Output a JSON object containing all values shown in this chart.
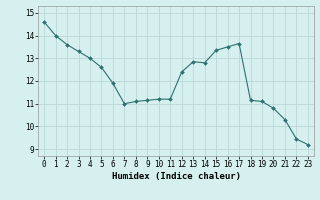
{
  "x": [
    0,
    1,
    2,
    3,
    4,
    5,
    6,
    7,
    8,
    9,
    10,
    11,
    12,
    13,
    14,
    15,
    16,
    17,
    18,
    19,
    20,
    21,
    22,
    23
  ],
  "y": [
    14.6,
    14.0,
    13.6,
    13.3,
    13.0,
    12.6,
    11.9,
    11.0,
    11.1,
    11.15,
    11.2,
    11.2,
    12.4,
    12.85,
    12.8,
    13.35,
    13.5,
    13.65,
    11.15,
    11.1,
    10.8,
    10.3,
    9.45,
    9.2
  ],
  "line_color": "#2e7070",
  "marker_color": "#2e7070",
  "bg_color": "#d5f0ee",
  "grid_major_color": "#b8d8d5",
  "grid_minor_color": "#ccebe8",
  "xlabel": "Humidex (Indice chaleur)",
  "xlim": [
    -0.5,
    23.5
  ],
  "ylim": [
    8.7,
    15.3
  ],
  "yticks": [
    9,
    10,
    11,
    12,
    13,
    14,
    15
  ],
  "xticks": [
    0,
    1,
    2,
    3,
    4,
    5,
    6,
    7,
    8,
    9,
    10,
    11,
    12,
    13,
    14,
    15,
    16,
    17,
    18,
    19,
    20,
    21,
    22,
    23
  ],
  "label_fontsize": 6.5,
  "tick_fontsize": 5.5,
  "figwidth": 3.2,
  "figheight": 2.0,
  "dpi": 100
}
